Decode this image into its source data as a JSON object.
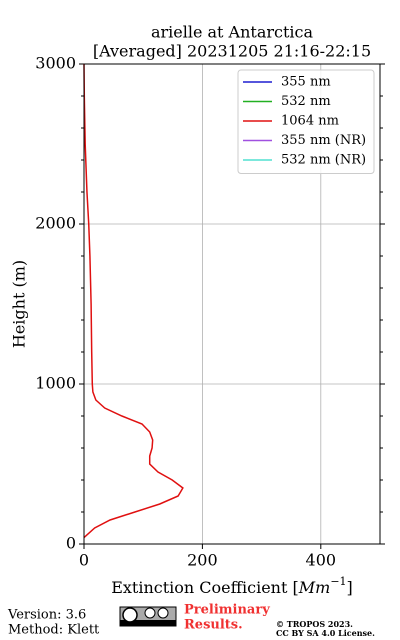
{
  "chart_data": {
    "type": "line",
    "title": "arielle at Antarctica",
    "subtitle": "[Averaged] 20231205 21:16-22:15",
    "xlabel_parts": [
      "Extinction Coefficient [",
      "Mm",
      "−1",
      "]"
    ],
    "ylabel": "Height (m)",
    "heights": [
      40,
      100,
      150,
      200,
      250,
      300,
      350,
      400,
      450,
      500,
      550,
      600,
      650,
      700,
      750,
      800,
      850,
      900,
      950,
      1000,
      1200,
      1500,
      1800,
      2000,
      2200,
      2500,
      2800,
      3000
    ],
    "series": [
      {
        "name": "355 nm",
        "color": "#1f1fd0",
        "values": [
          null,
          null,
          null,
          null,
          null,
          null,
          null,
          null,
          null,
          null,
          null,
          null,
          null,
          null,
          null,
          null,
          null,
          null,
          null,
          null,
          null,
          null,
          null,
          null,
          null,
          null,
          null,
          null
        ]
      },
      {
        "name": "532 nm",
        "color": "#22b022",
        "values": [
          null,
          null,
          null,
          null,
          null,
          null,
          null,
          null,
          null,
          null,
          null,
          null,
          null,
          null,
          null,
          null,
          null,
          null,
          null,
          null,
          null,
          null,
          null,
          null,
          null,
          null,
          null,
          null
        ]
      },
      {
        "name": "1064 nm",
        "color": "#e01010",
        "values": [
          0,
          18,
          44,
          86,
          128,
          159,
          167,
          149,
          125,
          111,
          111,
          115,
          116,
          111,
          98,
          64,
          35,
          20,
          15,
          14,
          13,
          12,
          10,
          8,
          5,
          2,
          0.5,
          0
        ]
      },
      {
        "name": "355 nm (NR)",
        "color": "#a050e0",
        "values": [
          null,
          null,
          null,
          null,
          null,
          null,
          null,
          null,
          null,
          null,
          null,
          null,
          null,
          null,
          null,
          null,
          null,
          null,
          null,
          null,
          null,
          null,
          null,
          null,
          null,
          null,
          null,
          null
        ]
      },
      {
        "name": "532 nm (NR)",
        "color": "#50e0d0",
        "values": [
          null,
          null,
          null,
          null,
          null,
          null,
          null,
          null,
          null,
          null,
          null,
          null,
          null,
          null,
          null,
          null,
          null,
          null,
          null,
          null,
          null,
          null,
          null,
          null,
          null,
          null,
          null,
          null
        ]
      }
    ],
    "xlim": [
      0,
      500
    ],
    "xticks": [
      0,
      200,
      400
    ],
    "ylim": [
      0,
      3000
    ],
    "yticks": [
      0,
      1000,
      2000,
      3000
    ],
    "yminorticks": [
      200,
      400,
      600,
      800,
      1200,
      1400,
      1600,
      1800,
      2200,
      2400,
      2600,
      2800
    ],
    "grid": true,
    "legend": "upper right",
    "footer": {
      "version": "Version: 3.6",
      "method": "Method: Klett",
      "preliminary": [
        "Preliminary",
        "Results."
      ],
      "copyright": "© TROPOS 2023.",
      "license": "CC BY SA 4.0 License."
    }
  }
}
